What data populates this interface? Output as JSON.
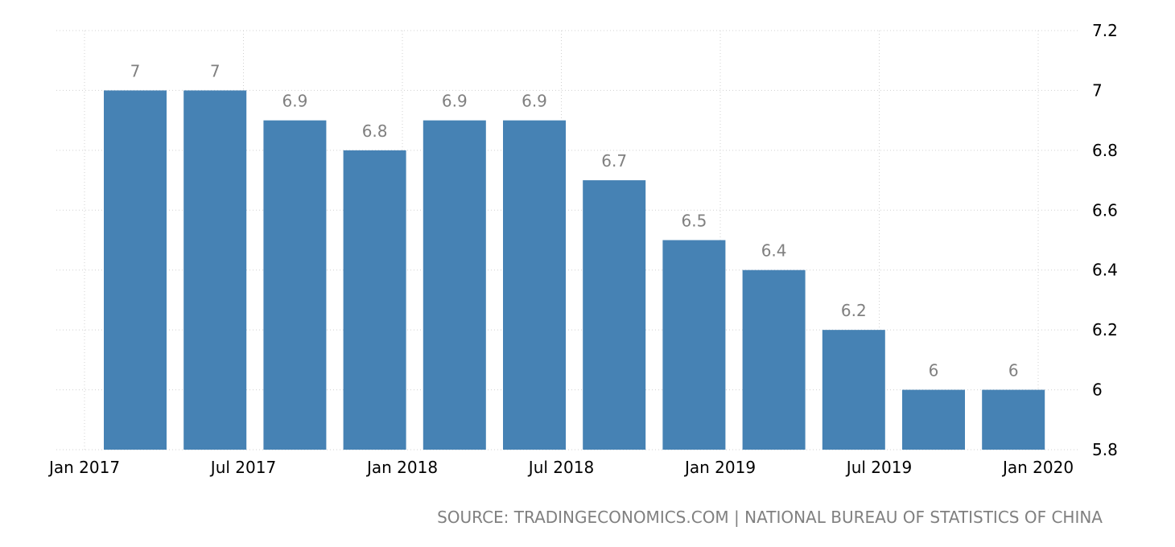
{
  "chart_data": {
    "type": "bar",
    "categories": [
      "Q1 2017",
      "Q2 2017",
      "Q3 2017",
      "Q4 2017",
      "Q1 2018",
      "Q2 2018",
      "Q3 2018",
      "Q4 2018",
      "Q1 2019",
      "Q2 2019",
      "Q3 2019",
      "Q4 2019"
    ],
    "values": [
      7,
      7,
      6.9,
      6.8,
      6.9,
      6.9,
      6.7,
      6.5,
      6.4,
      6.2,
      6,
      6
    ],
    "data_labels": [
      "7",
      "7",
      "6.9",
      "6.8",
      "6.9",
      "6.9",
      "6.7",
      "6.5",
      "6.4",
      "6.2",
      "6",
      "6"
    ],
    "x_tick_labels": [
      "Jan 2017",
      "Jul 2017",
      "Jan 2018",
      "Jul 2018",
      "Jan 2019",
      "Jul 2019",
      "Jan 2020"
    ],
    "y_ticks": [
      5.8,
      6,
      6.2,
      6.4,
      6.6,
      6.8,
      7,
      7.2
    ],
    "y_tick_labels": [
      "5.8",
      "6",
      "6.2",
      "6.4",
      "6.6",
      "6.8",
      "7",
      "7.2"
    ],
    "ylim": [
      5.8,
      7.2
    ],
    "y_axis_side": "right",
    "grid": true,
    "bar_color": "#4682b4",
    "label_color": "#808080",
    "title": "",
    "xlabel": "",
    "ylabel": "",
    "source": "SOURCE: TRADINGECONOMICS.COM | NATIONAL BUREAU OF STATISTICS OF CHINA"
  }
}
